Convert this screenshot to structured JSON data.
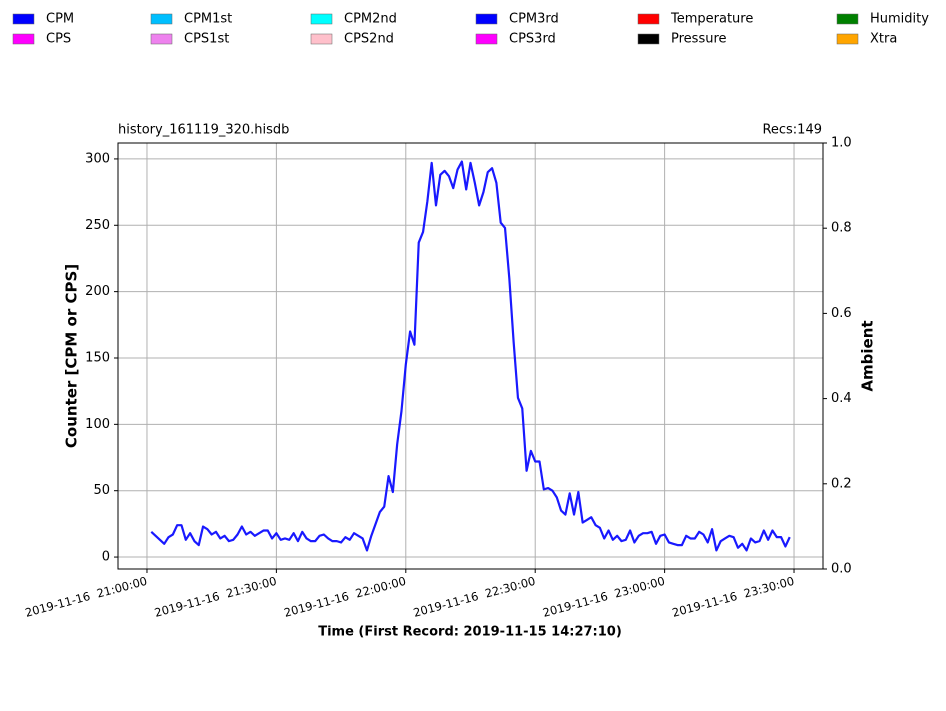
{
  "chart_data": {
    "type": "line",
    "title": "history_161119_320.hisdb",
    "subtitle": "Recs:149",
    "y_label": "Counter  [CPM or CPS]",
    "y2_label": "Ambient",
    "x_label": "Time (First Record: 2019-11-15 14:27:10)",
    "grid": true,
    "legend": "top",
    "xlim": [
      "2019-11-16 20:53:17",
      "2019-11-16 23:36:43"
    ],
    "xticks": [
      "2019-11-16  21:00:00",
      "2019-11-16  21:30:00",
      "2019-11-16  22:00:00",
      "2019-11-16  22:30:00",
      "2019-11-16  23:00:00",
      "2019-11-16  23:30:00"
    ],
    "ylim": [
      -9,
      312
    ],
    "yticks": [
      0,
      50,
      100,
      150,
      200,
      250,
      300
    ],
    "y2lim": [
      0,
      1
    ],
    "y2ticks": [
      {
        "value": 0,
        "label": "0.0"
      },
      0.2,
      0.4,
      0.6,
      0.8,
      {
        "value": 1,
        "label": "1.0"
      }
    ],
    "x": [
      "2019-11-16 21:01:00",
      "2019-11-16 21:02:00",
      "2019-11-16 21:03:00",
      "2019-11-16 21:04:00",
      "2019-11-16 21:05:00",
      "2019-11-16 21:06:00",
      "2019-11-16 21:07:00",
      "2019-11-16 21:08:00",
      "2019-11-16 21:09:00",
      "2019-11-16 21:10:00",
      "2019-11-16 21:11:00",
      "2019-11-16 21:12:00",
      "2019-11-16 21:13:00",
      "2019-11-16 21:14:00",
      "2019-11-16 21:15:00",
      "2019-11-16 21:16:00",
      "2019-11-16 21:17:00",
      "2019-11-16 21:18:00",
      "2019-11-16 21:19:00",
      "2019-11-16 21:20:00",
      "2019-11-16 21:21:00",
      "2019-11-16 21:22:00",
      "2019-11-16 21:23:00",
      "2019-11-16 21:24:00",
      "2019-11-16 21:25:00",
      "2019-11-16 21:26:00",
      "2019-11-16 21:27:00",
      "2019-11-16 21:28:00",
      "2019-11-16 21:29:00",
      "2019-11-16 21:30:00",
      "2019-11-16 21:31:00",
      "2019-11-16 21:32:00",
      "2019-11-16 21:33:00",
      "2019-11-16 21:34:00",
      "2019-11-16 21:35:00",
      "2019-11-16 21:36:00",
      "2019-11-16 21:37:00",
      "2019-11-16 21:38:00",
      "2019-11-16 21:39:00",
      "2019-11-16 21:40:00",
      "2019-11-16 21:41:00",
      "2019-11-16 21:42:00",
      "2019-11-16 21:43:00",
      "2019-11-16 21:44:00",
      "2019-11-16 21:45:00",
      "2019-11-16 21:46:00",
      "2019-11-16 21:47:00",
      "2019-11-16 21:48:00",
      "2019-11-16 21:49:00",
      "2019-11-16 21:50:00",
      "2019-11-16 21:51:00",
      "2019-11-16 21:52:00",
      "2019-11-16 21:53:00",
      "2019-11-16 21:54:00",
      "2019-11-16 21:55:00",
      "2019-11-16 21:56:00",
      "2019-11-16 21:57:00",
      "2019-11-16 21:58:00",
      "2019-11-16 21:59:00",
      "2019-11-16 22:00:00",
      "2019-11-16 22:01:00",
      "2019-11-16 22:02:00",
      "2019-11-16 22:03:00",
      "2019-11-16 22:04:00",
      "2019-11-16 22:05:00",
      "2019-11-16 22:06:00",
      "2019-11-16 22:07:00",
      "2019-11-16 22:08:00",
      "2019-11-16 22:09:00",
      "2019-11-16 22:10:00",
      "2019-11-16 22:11:00",
      "2019-11-16 22:12:00",
      "2019-11-16 22:13:00",
      "2019-11-16 22:14:00",
      "2019-11-16 22:15:00",
      "2019-11-16 22:16:00",
      "2019-11-16 22:17:00",
      "2019-11-16 22:18:00",
      "2019-11-16 22:19:00",
      "2019-11-16 22:20:00",
      "2019-11-16 22:21:00",
      "2019-11-16 22:22:00",
      "2019-11-16 22:23:00",
      "2019-11-16 22:24:00",
      "2019-11-16 22:25:00",
      "2019-11-16 22:26:00",
      "2019-11-16 22:27:00",
      "2019-11-16 22:28:00",
      "2019-11-16 22:29:00",
      "2019-11-16 22:30:00",
      "2019-11-16 22:31:00",
      "2019-11-16 22:32:00",
      "2019-11-16 22:33:00",
      "2019-11-16 22:34:00",
      "2019-11-16 22:35:00",
      "2019-11-16 22:36:00",
      "2019-11-16 22:37:00",
      "2019-11-16 22:38:00",
      "2019-11-16 22:39:00",
      "2019-11-16 22:40:00",
      "2019-11-16 22:41:00",
      "2019-11-16 22:42:00",
      "2019-11-16 22:43:00",
      "2019-11-16 22:44:00",
      "2019-11-16 22:45:00",
      "2019-11-16 22:46:00",
      "2019-11-16 22:47:00",
      "2019-11-16 22:48:00",
      "2019-11-16 22:49:00",
      "2019-11-16 22:50:00",
      "2019-11-16 22:51:00",
      "2019-11-16 22:52:00",
      "2019-11-16 22:53:00",
      "2019-11-16 22:54:00",
      "2019-11-16 22:55:00",
      "2019-11-16 22:56:00",
      "2019-11-16 22:57:00",
      "2019-11-16 22:58:00",
      "2019-11-16 22:59:00",
      "2019-11-16 23:00:00",
      "2019-11-16 23:01:00",
      "2019-11-16 23:02:00",
      "2019-11-16 23:03:00",
      "2019-11-16 23:04:00",
      "2019-11-16 23:05:00",
      "2019-11-16 23:06:00",
      "2019-11-16 23:07:00",
      "2019-11-16 23:08:00",
      "2019-11-16 23:09:00",
      "2019-11-16 23:10:00",
      "2019-11-16 23:11:00",
      "2019-11-16 23:12:00",
      "2019-11-16 23:13:00",
      "2019-11-16 23:14:00",
      "2019-11-16 23:15:00",
      "2019-11-16 23:16:00",
      "2019-11-16 23:17:00",
      "2019-11-16 23:18:00",
      "2019-11-16 23:19:00",
      "2019-11-16 23:20:00",
      "2019-11-16 23:21:00",
      "2019-11-16 23:22:00",
      "2019-11-16 23:23:00",
      "2019-11-16 23:24:00",
      "2019-11-16 23:25:00",
      "2019-11-16 23:26:00",
      "2019-11-16 23:27:00",
      "2019-11-16 23:28:00",
      "2019-11-16 23:29:00"
    ],
    "series": [
      {
        "name": "CPM",
        "color": "#0000ff",
        "values": [
          19,
          16,
          13,
          10,
          15,
          17,
          24,
          24,
          13,
          18,
          12,
          9,
          23,
          21,
          17,
          19,
          14,
          16,
          12,
          13,
          17,
          23,
          17,
          19,
          16,
          18,
          20,
          20,
          14,
          18,
          13,
          14,
          13,
          18,
          12,
          19,
          14,
          12,
          12,
          16,
          17,
          14,
          12,
          12,
          11,
          15,
          13,
          18,
          16,
          14,
          5,
          16,
          25,
          34,
          38,
          61,
          49,
          85,
          110,
          145,
          170,
          160,
          237,
          245,
          268,
          297,
          265,
          288,
          291,
          287,
          278,
          292,
          298,
          277,
          297,
          282,
          265,
          275,
          290,
          293,
          282,
          252,
          248,
          210,
          162,
          120,
          112,
          65,
          80,
          72,
          72,
          51,
          52,
          50,
          45,
          35,
          32,
          48,
          32,
          49,
          26,
          28,
          30,
          24,
          22,
          14,
          20,
          13,
          16,
          12,
          13,
          20,
          11,
          16,
          18,
          18,
          19,
          10,
          16,
          17,
          11,
          10,
          9,
          9,
          16,
          14,
          14,
          19,
          17,
          11,
          21,
          5,
          12,
          14,
          16,
          15,
          7,
          10,
          5,
          14,
          11,
          12,
          20,
          13,
          20,
          15,
          15,
          8,
          15
        ]
      },
      {
        "name": "CPS",
        "color": "#ff00ff"
      },
      {
        "name": "CPM1st",
        "color": "#00bfff"
      },
      {
        "name": "CPS1st",
        "color": "#ee82ee"
      },
      {
        "name": "CPM2nd",
        "color": "#00ffff"
      },
      {
        "name": "CPS2nd",
        "color": "#ffc0cb"
      },
      {
        "name": "CPM3rd",
        "color": "#0000ff"
      },
      {
        "name": "CPS3rd",
        "color": "#ff00ff"
      },
      {
        "name": "Temperature",
        "color": "#ff0000",
        "axis": "y2"
      },
      {
        "name": "Pressure",
        "color": "#000000",
        "axis": "y2"
      },
      {
        "name": "Humidity",
        "color": "#008000",
        "axis": "y2"
      },
      {
        "name": "Xtra",
        "color": "#ffa500",
        "axis": "y2"
      }
    ]
  }
}
